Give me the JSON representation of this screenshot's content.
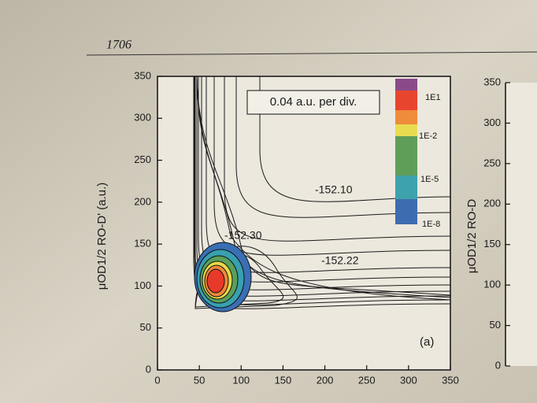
{
  "page_number": "1706",
  "chart_data": [
    {
      "type": "contour",
      "ylabel": "μOD1/2 RO-D' (a.u.)",
      "xlim": [
        0,
        350
      ],
      "ylim": [
        0,
        350
      ],
      "xticks": [
        0,
        50,
        100,
        150,
        200,
        250,
        300,
        350
      ],
      "yticks": [
        0,
        50,
        100,
        150,
        200,
        250,
        300,
        350
      ],
      "scale_note": "0.04 a.u. per div.",
      "contour_labels": [
        "-152.10",
        "-152.22",
        "-152.30"
      ],
      "colorbar_labels": [
        "1E1",
        "1E-2",
        "1E-5",
        "1E-8"
      ],
      "panel_label": "(a)"
    },
    {
      "type": "contour",
      "ylabel": "μOD1/2 RO-D",
      "ylim": [
        0,
        350
      ],
      "yticks": [
        0,
        50,
        100,
        150,
        200,
        250,
        300,
        350
      ]
    }
  ]
}
